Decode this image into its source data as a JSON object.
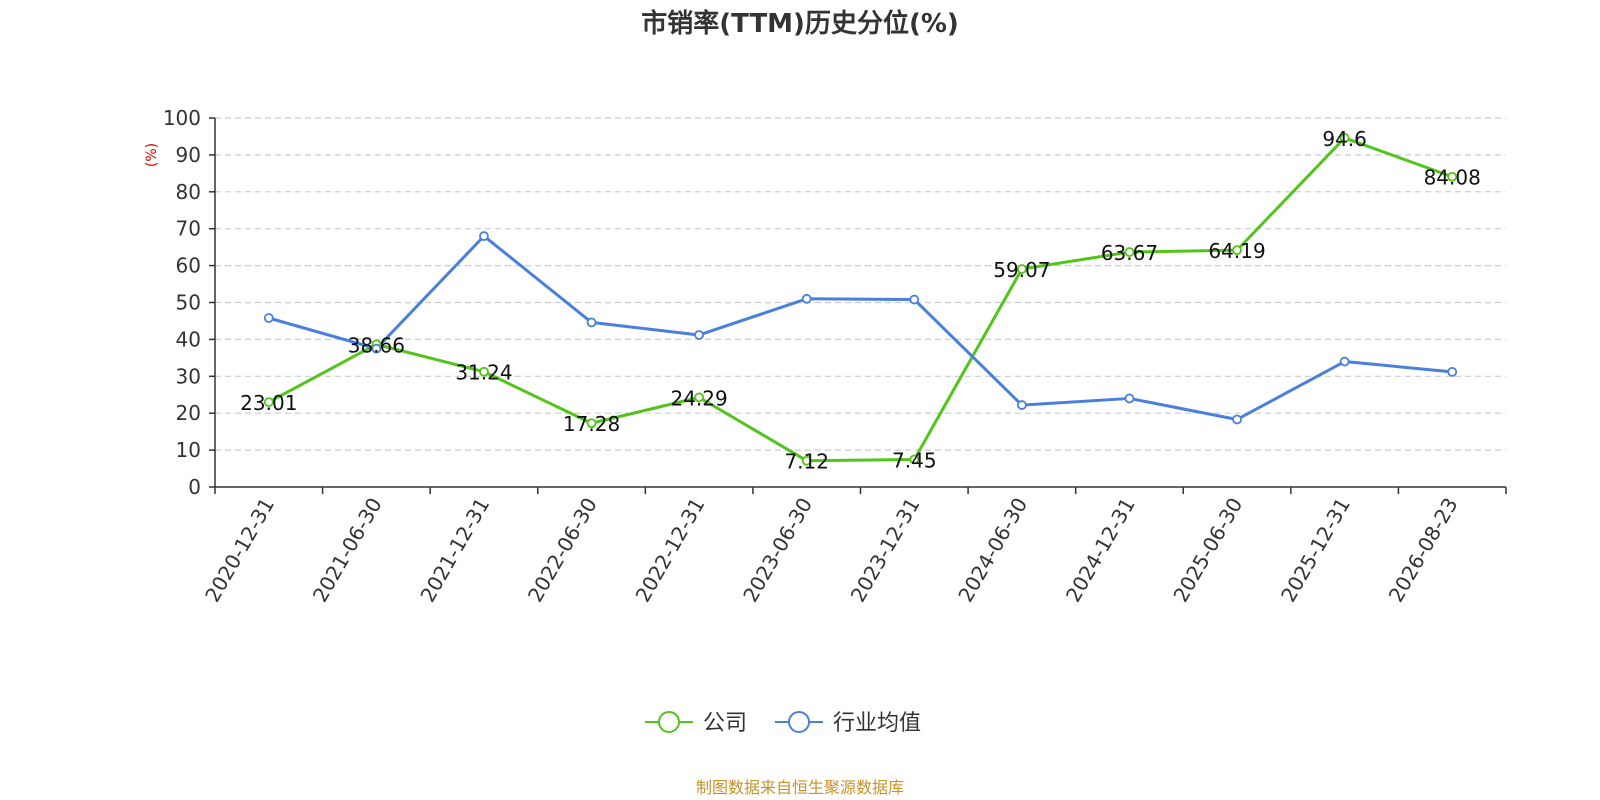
{
  "chart_data": {
    "type": "line",
    "title": "市销率(TTM)历史分位(%)",
    "ylabel": "(%)",
    "xlabel": "",
    "ylim": [
      0,
      100
    ],
    "yticks": [
      0,
      10,
      20,
      30,
      40,
      50,
      60,
      70,
      80,
      90,
      100
    ],
    "categories": [
      "2020-12-31",
      "2021-06-30",
      "2021-12-31",
      "2022-06-30",
      "2022-12-31",
      "2023-06-30",
      "2023-12-31",
      "2024-06-30",
      "2024-12-31",
      "2025-06-30",
      "2025-12-31",
      "2026-08-23"
    ],
    "grid": true,
    "legend_position": "bottom",
    "series": [
      {
        "name": "公司",
        "color": "#52c41a",
        "show_labels": true,
        "values": [
          23.01,
          38.66,
          31.24,
          17.28,
          24.29,
          7.12,
          7.45,
          59.07,
          63.67,
          64.19,
          94.6,
          84.08
        ]
      },
      {
        "name": "行业均值",
        "color": "#4a7fdc",
        "show_labels": false,
        "values": [
          45.8,
          37.5,
          68.0,
          44.6,
          41.2,
          51.0,
          50.8,
          22.2,
          24.0,
          18.3,
          34.0,
          31.2
        ]
      }
    ],
    "source": "制图数据来自恒生聚源数据库"
  }
}
